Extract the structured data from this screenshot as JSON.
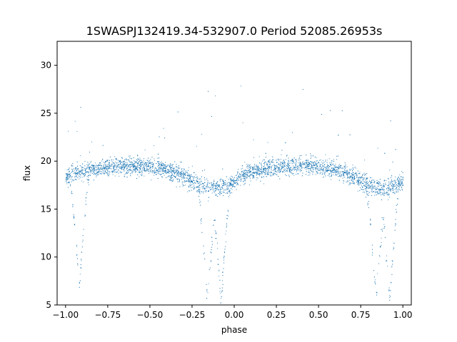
{
  "chart_data": {
    "type": "scatter",
    "title": "1SWASPJ132419.34-532907.0 Period 52085.26953s",
    "xlabel": "phase",
    "ylabel": "flux",
    "xlim": [
      -1.05,
      1.05
    ],
    "ylim": [
      5.0,
      32.5
    ],
    "x_ticks": [
      -1.0,
      -0.75,
      -0.5,
      -0.25,
      0.0,
      0.25,
      0.5,
      0.75,
      1.0
    ],
    "x_tick_labels": [
      "−1.00",
      "−0.75",
      "−0.50",
      "−0.25",
      "0.00",
      "0.25",
      "0.50",
      "0.75",
      "1.00"
    ],
    "y_ticks": [
      5,
      10,
      15,
      20,
      25,
      30
    ],
    "y_tick_labels": [
      "5",
      "10",
      "15",
      "20",
      "25",
      "30"
    ],
    "grid": false,
    "legend": "none",
    "series": [
      {
        "color": "#1f77b4",
        "baseline_flux": 19.5,
        "primary_eclipse": {
          "phases": [
            -0.92,
            -0.08,
            0.92
          ],
          "min_flux": 7.5
        },
        "secondary_eclipse": {
          "phases": [
            -0.16,
            0.84
          ],
          "min_flux": 7.5
        },
        "shallow_branch_min_flux": 17.0,
        "x": [
          -1.0,
          -0.95,
          -0.9,
          -0.85,
          -0.8,
          -0.75,
          -0.7,
          -0.65,
          -0.6,
          -0.55,
          -0.5,
          -0.45,
          -0.4,
          -0.35,
          -0.3,
          -0.25,
          -0.2,
          -0.15,
          -0.1,
          -0.05,
          0.0,
          0.05,
          0.1,
          0.15,
          0.2,
          0.25,
          0.3,
          0.35,
          0.4,
          0.45,
          0.5,
          0.55,
          0.6,
          0.65,
          0.7,
          0.75,
          0.8,
          0.85,
          0.9,
          0.95,
          1.0
        ],
        "y": [
          18.4,
          18.6,
          18.9,
          19.1,
          19.3,
          19.4,
          19.5,
          19.5,
          19.5,
          19.5,
          19.4,
          19.3,
          19.1,
          18.8,
          18.4,
          17.9,
          17.5,
          17.2,
          17.2,
          17.4,
          18.0,
          18.6,
          18.9,
          19.1,
          19.3,
          19.4,
          19.5,
          19.5,
          19.5,
          19.5,
          19.4,
          19.3,
          19.1,
          18.8,
          18.4,
          17.9,
          17.5,
          17.2,
          17.2,
          17.4,
          18.0
        ]
      }
    ]
  }
}
